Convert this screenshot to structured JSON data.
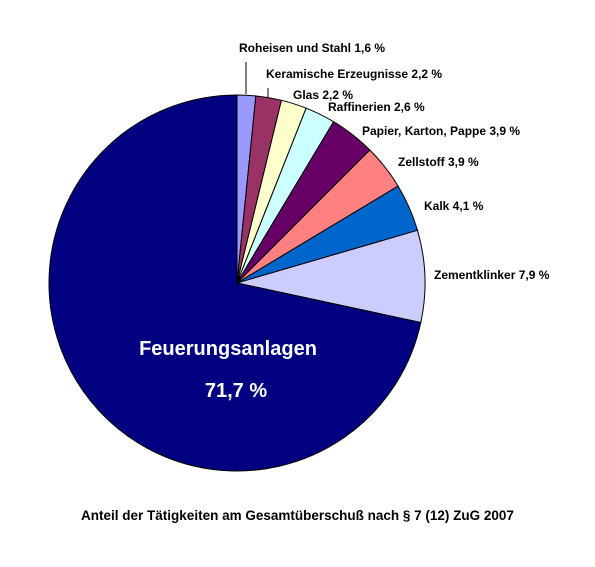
{
  "chart_data": {
    "type": "pie",
    "caption": "Anteil der Tätigkeiten am Gesamtüberschuß nach § 7 (12) ZuG 2007",
    "slices": [
      {
        "label": "Roheisen und Stahl 1,6 %",
        "value": 1.6,
        "color": "#9999ff"
      },
      {
        "label": "Keramische Erzeugnisse 2,2 %",
        "value": 2.2,
        "color": "#993366"
      },
      {
        "label": "Glas 2,2 %",
        "value": 2.2,
        "color": "#ffffcc"
      },
      {
        "label": "Raffinerien 2,6 %",
        "value": 2.6,
        "color": "#ccffff"
      },
      {
        "label": "Papier, Karton, Pappe 3,9 %",
        "value": 3.9,
        "color": "#660066"
      },
      {
        "label": "Zellstoff 3,9 %",
        "value": 3.9,
        "color": "#ff8080"
      },
      {
        "label": "Kalk 4,1 %",
        "value": 4.1,
        "color": "#0066cc"
      },
      {
        "label": "Zementklinker 7,9 %",
        "value": 7.9,
        "color": "#ccccff"
      },
      {
        "label": "Feuerungsanlagen",
        "value_label": "71,7 %",
        "value": 71.7,
        "color": "#000080"
      }
    ]
  }
}
